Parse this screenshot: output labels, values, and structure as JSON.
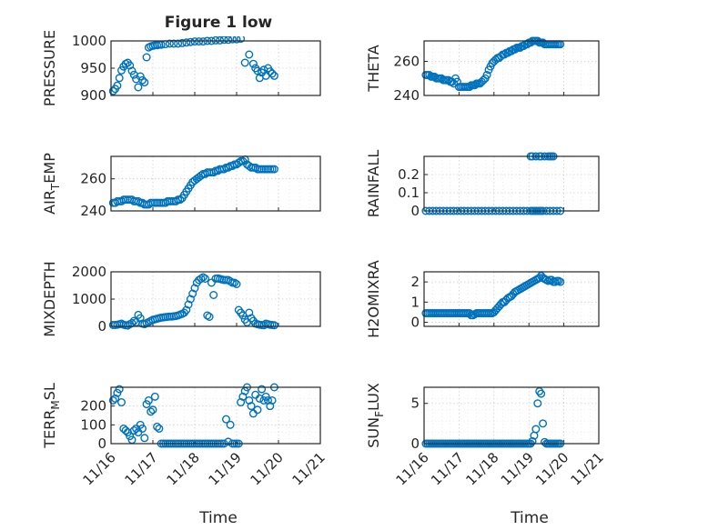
{
  "title": "Figure 1 low",
  "xlabel": "Time",
  "x_ticks": [
    "11/16",
    "11/17",
    "11/18",
    "11/19",
    "11/20",
    "11/21"
  ],
  "marker_color": "#0072BD",
  "chart_data": [
    {
      "type": "scatter",
      "ylabel_main": "PRESSURE",
      "ylabel_sub": "",
      "xlim": [
        0,
        5
      ],
      "ylim": [
        900,
        1000
      ],
      "yticks": [
        900,
        950,
        1000
      ],
      "x": [
        0.05,
        0.1,
        0.15,
        0.2,
        0.25,
        0.3,
        0.35,
        0.4,
        0.45,
        0.5,
        0.55,
        0.6,
        0.65,
        0.7,
        0.75,
        0.8,
        0.85,
        0.9,
        0.95,
        1.0,
        1.05,
        1.1,
        1.15,
        1.2,
        1.3,
        1.4,
        1.5,
        1.6,
        1.7,
        1.8,
        1.9,
        2.0,
        2.1,
        2.2,
        2.3,
        2.4,
        2.5,
        2.6,
        2.7,
        2.8,
        2.9,
        3.0,
        3.1,
        3.2,
        3.3,
        3.4,
        3.45,
        3.5,
        3.55,
        3.6,
        3.65,
        3.7,
        3.75,
        3.8,
        3.85,
        3.9
      ],
      "y": [
        908,
        912,
        918,
        932,
        946,
        953,
        958,
        960,
        955,
        945,
        938,
        930,
        915,
        935,
        928,
        924,
        970,
        988,
        990,
        991,
        992,
        992,
        993,
        993,
        994,
        995,
        995,
        995,
        996,
        997,
        998,
        999,
        999,
        999,
        1000,
        1000,
        1001,
        1001,
        1002,
        1002,
        1003,
        1003,
        1004,
        960,
        975,
        958,
        950,
        945,
        932,
        942,
        947,
        936,
        950,
        944,
        940,
        936
      ]
    },
    {
      "type": "scatter",
      "ylabel_main": "THETA",
      "ylabel_sub": "",
      "xlim": [
        0,
        5
      ],
      "ylim": [
        240,
        272
      ],
      "yticks": [
        240,
        260
      ],
      "x": [
        0.05,
        0.1,
        0.15,
        0.2,
        0.25,
        0.3,
        0.35,
        0.4,
        0.45,
        0.5,
        0.55,
        0.6,
        0.65,
        0.7,
        0.75,
        0.8,
        0.85,
        0.9,
        0.95,
        1.0,
        1.05,
        1.1,
        1.15,
        1.2,
        1.25,
        1.3,
        1.35,
        1.4,
        1.45,
        1.5,
        1.55,
        1.6,
        1.65,
        1.7,
        1.75,
        1.8,
        1.85,
        1.9,
        1.95,
        2.0,
        2.05,
        2.1,
        2.15,
        2.2,
        2.25,
        2.3,
        2.35,
        2.4,
        2.45,
        2.5,
        2.55,
        2.6,
        2.65,
        2.7,
        2.75,
        2.8,
        2.85,
        2.9,
        2.95,
        3.0,
        3.05,
        3.1,
        3.15,
        3.2,
        3.25,
        3.3,
        3.35,
        3.4,
        3.45,
        3.5,
        3.55,
        3.6,
        3.65,
        3.7,
        3.75,
        3.8,
        3.85,
        3.9
      ],
      "y": [
        252,
        252,
        252,
        251,
        251,
        251,
        250,
        250,
        250,
        250,
        249,
        249,
        249,
        249,
        248,
        248,
        247,
        250,
        248,
        245,
        245,
        245,
        245,
        245,
        245,
        245,
        246,
        246,
        246,
        247,
        247,
        247,
        248,
        249,
        250,
        252,
        255,
        257,
        259,
        260,
        261,
        262,
        262,
        263,
        264,
        264,
        265,
        265,
        266,
        266,
        267,
        267,
        268,
        268,
        268,
        269,
        269,
        270,
        270,
        271,
        271,
        272,
        272,
        272,
        272,
        271,
        271,
        271,
        270,
        270,
        270,
        270,
        270,
        270,
        270,
        270,
        270,
        270
      ]
    },
    {
      "type": "scatter",
      "ylabel_main": "AIR",
      "ylabel_sub": "T",
      "ylabel_tail": "EMP",
      "xlim": [
        0,
        5
      ],
      "ylim": [
        240,
        274
      ],
      "yticks": [
        240,
        260
      ],
      "x": [
        0.05,
        0.1,
        0.15,
        0.2,
        0.25,
        0.3,
        0.35,
        0.4,
        0.45,
        0.5,
        0.55,
        0.6,
        0.65,
        0.7,
        0.75,
        0.8,
        0.85,
        0.9,
        0.95,
        1.0,
        1.05,
        1.1,
        1.15,
        1.2,
        1.25,
        1.3,
        1.35,
        1.4,
        1.45,
        1.5,
        1.55,
        1.6,
        1.65,
        1.7,
        1.75,
        1.8,
        1.85,
        1.9,
        1.95,
        2.0,
        2.05,
        2.1,
        2.15,
        2.2,
        2.25,
        2.3,
        2.35,
        2.4,
        2.45,
        2.5,
        2.55,
        2.6,
        2.65,
        2.7,
        2.75,
        2.8,
        2.85,
        2.9,
        2.95,
        3.0,
        3.05,
        3.1,
        3.15,
        3.2,
        3.25,
        3.3,
        3.35,
        3.4,
        3.45,
        3.5,
        3.55,
        3.6,
        3.65,
        3.7,
        3.75,
        3.8,
        3.85,
        3.9
      ],
      "y": [
        245,
        245,
        246,
        246,
        246,
        247,
        247,
        247,
        247,
        247,
        246,
        246,
        246,
        245,
        245,
        244,
        244,
        244,
        245,
        245,
        245,
        245,
        245,
        245,
        245,
        245,
        246,
        246,
        246,
        246,
        246,
        247,
        247,
        248,
        250,
        252,
        254,
        256,
        258,
        259,
        260,
        261,
        262,
        263,
        263,
        264,
        264,
        264,
        264,
        265,
        265,
        266,
        266,
        266,
        267,
        267,
        268,
        268,
        269,
        269,
        270,
        271,
        271,
        272,
        269,
        268,
        267,
        267,
        267,
        266,
        266,
        266,
        266,
        266,
        266,
        266,
        266,
        266
      ]
    },
    {
      "type": "scatter",
      "ylabel_main": "RAINFALL",
      "ylabel_sub": "",
      "xlim": [
        0,
        5
      ],
      "ylim": [
        0,
        0.3
      ],
      "yticks": [
        0,
        0.1,
        0.2
      ],
      "x": [
        0.05,
        0.15,
        0.25,
        0.35,
        0.45,
        0.55,
        0.65,
        0.75,
        0.85,
        0.95,
        1.05,
        1.15,
        1.25,
        1.35,
        1.45,
        1.55,
        1.65,
        1.75,
        1.85,
        1.95,
        2.05,
        2.15,
        2.25,
        2.35,
        2.45,
        2.55,
        2.65,
        2.75,
        2.85,
        2.95,
        3.05,
        3.1,
        3.15,
        3.2,
        3.25,
        3.3,
        3.35,
        3.4,
        3.5,
        3.6,
        3.7,
        3.8,
        3.9,
        3.05,
        3.1,
        3.2,
        3.3,
        3.35,
        3.45,
        3.55,
        3.6,
        3.65,
        3.7
      ],
      "y": [
        0,
        0,
        0,
        0,
        0,
        0,
        0,
        0,
        0,
        0,
        0,
        0,
        0,
        0,
        0,
        0,
        0,
        0,
        0,
        0,
        0,
        0,
        0,
        0,
        0,
        0,
        0,
        0,
        0,
        0,
        0,
        0,
        0,
        0,
        0,
        0,
        0,
        0,
        0,
        0,
        0,
        0,
        0,
        0.3,
        0.3,
        0.3,
        0.3,
        0.3,
        0.3,
        0.3,
        0.3,
        0.3,
        0.3
      ]
    },
    {
      "type": "scatter",
      "ylabel_main": "MIXDEPTH",
      "ylabel_sub": "",
      "xlim": [
        0,
        5
      ],
      "ylim": [
        0,
        2000
      ],
      "yticks": [
        0,
        1000,
        2000
      ],
      "x": [
        0.05,
        0.1,
        0.15,
        0.2,
        0.25,
        0.3,
        0.35,
        0.4,
        0.45,
        0.5,
        0.55,
        0.6,
        0.65,
        0.7,
        0.75,
        0.8,
        0.85,
        0.9,
        0.95,
        1.0,
        1.05,
        1.1,
        1.15,
        1.2,
        1.25,
        1.3,
        1.35,
        1.4,
        1.45,
        1.5,
        1.55,
        1.6,
        1.65,
        1.7,
        1.75,
        1.8,
        1.85,
        1.9,
        1.95,
        2.0,
        2.05,
        2.1,
        2.15,
        2.2,
        2.25,
        2.3,
        2.35,
        2.4,
        2.45,
        2.5,
        2.55,
        2.6,
        2.65,
        2.7,
        2.75,
        2.8,
        2.85,
        2.9,
        2.95,
        3.0,
        3.05,
        3.1,
        3.15,
        3.2,
        3.25,
        3.3,
        3.35,
        3.4,
        3.45,
        3.5,
        3.55,
        3.6,
        3.65,
        3.7,
        3.75,
        3.8,
        3.85,
        3.9
      ],
      "y": [
        50,
        50,
        60,
        80,
        100,
        60,
        40,
        30,
        80,
        120,
        200,
        150,
        420,
        300,
        100,
        80,
        120,
        160,
        200,
        240,
        260,
        280,
        300,
        320,
        330,
        340,
        350,
        360,
        360,
        370,
        380,
        400,
        430,
        460,
        500,
        600,
        800,
        1000,
        1200,
        1400,
        1600,
        1700,
        1750,
        1800,
        1750,
        400,
        350,
        1600,
        1150,
        1750,
        1760,
        1740,
        1720,
        1700,
        1700,
        1700,
        1650,
        1600,
        1600,
        1550,
        600,
        500,
        400,
        250,
        150,
        500,
        300,
        200,
        100,
        80,
        60,
        50,
        40,
        100,
        80,
        60,
        50,
        40
      ]
    },
    {
      "type": "scatter",
      "ylabel_main": "H2OMIXRA",
      "ylabel_sub": "",
      "xlim": [
        0,
        5
      ],
      "ylim": [
        -0.2,
        2.5
      ],
      "yticks": [
        0,
        1,
        2
      ],
      "x": [
        0.05,
        0.1,
        0.15,
        0.2,
        0.25,
        0.3,
        0.35,
        0.4,
        0.45,
        0.5,
        0.55,
        0.6,
        0.65,
        0.7,
        0.75,
        0.8,
        0.85,
        0.9,
        0.95,
        1.0,
        1.05,
        1.1,
        1.15,
        1.2,
        1.25,
        1.3,
        1.35,
        1.4,
        1.45,
        1.5,
        1.55,
        1.6,
        1.65,
        1.7,
        1.75,
        1.8,
        1.85,
        1.9,
        1.95,
        2.0,
        2.05,
        2.1,
        2.15,
        2.2,
        2.25,
        2.3,
        2.35,
        2.4,
        2.45,
        2.5,
        2.55,
        2.6,
        2.65,
        2.7,
        2.75,
        2.8,
        2.85,
        2.9,
        2.95,
        3.0,
        3.05,
        3.1,
        3.15,
        3.2,
        3.25,
        3.3,
        3.35,
        3.4,
        3.45,
        3.5,
        3.55,
        3.6,
        3.65,
        3.7,
        3.75,
        3.8,
        3.85,
        3.9
      ],
      "y": [
        0.45,
        0.45,
        0.45,
        0.45,
        0.45,
        0.45,
        0.45,
        0.45,
        0.45,
        0.45,
        0.45,
        0.45,
        0.45,
        0.45,
        0.45,
        0.45,
        0.45,
        0.45,
        0.45,
        0.45,
        0.45,
        0.45,
        0.45,
        0.45,
        0.45,
        0.45,
        0.35,
        0.35,
        0.4,
        0.45,
        0.45,
        0.45,
        0.45,
        0.45,
        0.45,
        0.45,
        0.45,
        0.45,
        0.45,
        0.5,
        0.6,
        0.7,
        0.8,
        0.9,
        1.0,
        1.0,
        1.1,
        1.2,
        1.25,
        1.3,
        1.4,
        1.5,
        1.55,
        1.6,
        1.65,
        1.7,
        1.75,
        1.8,
        1.85,
        1.9,
        1.95,
        2.0,
        2.05,
        2.1,
        2.15,
        2.2,
        2.3,
        2.2,
        2.15,
        2.1,
        2.05,
        2.1,
        2.1,
        2.0,
        2.0,
        2.05,
        2.05,
        2.0
      ]
    },
    {
      "type": "scatter",
      "ylabel_main": "TERR",
      "ylabel_sub": "M",
      "ylabel_tail": "SL",
      "xlim": [
        0,
        5
      ],
      "ylim": [
        0,
        300
      ],
      "yticks": [
        0,
        100,
        200
      ],
      "x": [
        0.05,
        0.1,
        0.15,
        0.2,
        0.25,
        0.3,
        0.35,
        0.4,
        0.45,
        0.5,
        0.55,
        0.6,
        0.65,
        0.7,
        0.75,
        0.8,
        0.85,
        0.9,
        0.95,
        1.0,
        1.05,
        1.1,
        1.15,
        1.2,
        1.25,
        1.3,
        1.35,
        1.4,
        1.45,
        1.5,
        1.55,
        1.6,
        1.65,
        1.7,
        1.75,
        1.8,
        1.85,
        1.9,
        1.95,
        2.0,
        2.05,
        2.1,
        2.15,
        2.2,
        2.25,
        2.3,
        2.35,
        2.4,
        2.45,
        2.5,
        2.55,
        2.6,
        2.65,
        2.7,
        2.75,
        2.8,
        2.85,
        2.9,
        2.95,
        3.0,
        3.05,
        3.1,
        3.15,
        3.2,
        3.25,
        3.3,
        3.35,
        3.4,
        3.45,
        3.5,
        3.55,
        3.6,
        3.65,
        3.7,
        3.75,
        3.8,
        3.85,
        3.9
      ],
      "y": [
        230,
        240,
        270,
        290,
        220,
        80,
        70,
        60,
        40,
        20,
        70,
        80,
        60,
        100,
        80,
        30,
        210,
        230,
        170,
        180,
        250,
        90,
        80,
        0,
        0,
        0,
        0,
        0,
        0,
        0,
        0,
        0,
        0,
        0,
        0,
        0,
        0,
        0,
        0,
        0,
        0,
        0,
        0,
        0,
        0,
        0,
        0,
        0,
        0,
        0,
        0,
        0,
        0,
        0,
        130,
        10,
        100,
        0,
        0,
        0,
        0,
        220,
        250,
        280,
        300,
        230,
        200,
        160,
        260,
        180,
        240,
        290,
        230,
        250,
        230,
        200,
        230,
        300
      ]
    },
    {
      "type": "scatter",
      "ylabel_main": "SUN",
      "ylabel_sub": "F",
      "ylabel_tail": "LUX",
      "xlim": [
        0,
        5
      ],
      "ylim": [
        0,
        7
      ],
      "yticks": [
        0,
        5
      ],
      "x": [
        0.05,
        0.1,
        0.15,
        0.2,
        0.25,
        0.3,
        0.35,
        0.4,
        0.45,
        0.5,
        0.55,
        0.6,
        0.65,
        0.7,
        0.75,
        0.8,
        0.85,
        0.9,
        0.95,
        1.0,
        1.05,
        1.1,
        1.15,
        1.2,
        1.25,
        1.3,
        1.35,
        1.4,
        1.45,
        1.5,
        1.55,
        1.6,
        1.65,
        1.7,
        1.75,
        1.8,
        1.85,
        1.9,
        1.95,
        2.0,
        2.05,
        2.1,
        2.15,
        2.2,
        2.25,
        2.3,
        2.35,
        2.4,
        2.45,
        2.5,
        2.55,
        2.6,
        2.65,
        2.7,
        2.75,
        2.8,
        2.85,
        2.9,
        2.95,
        3.0,
        3.05,
        3.1,
        3.15,
        3.2,
        3.25,
        3.3,
        3.35,
        3.4,
        3.45,
        3.5,
        3.55,
        3.6,
        3.65,
        3.7,
        3.75,
        3.8,
        3.85,
        3.9
      ],
      "y": [
        0,
        0,
        0,
        0,
        0,
        0,
        0,
        0,
        0,
        0,
        0,
        0,
        0,
        0,
        0,
        0,
        0,
        0,
        0,
        0,
        0,
        0,
        0,
        0,
        0,
        0,
        0,
        0,
        0,
        0,
        0,
        0,
        0,
        0,
        0,
        0,
        0,
        0,
        0,
        0,
        0,
        0,
        0,
        0,
        0,
        0,
        0,
        0,
        0,
        0,
        0,
        0,
        0,
        0,
        0,
        0,
        0,
        0,
        0,
        0,
        0,
        0.3,
        1.0,
        1.8,
        5.0,
        6.5,
        6.2,
        2.5,
        0.2,
        0,
        0,
        0,
        0,
        0,
        0,
        0,
        0,
        0
      ]
    }
  ]
}
